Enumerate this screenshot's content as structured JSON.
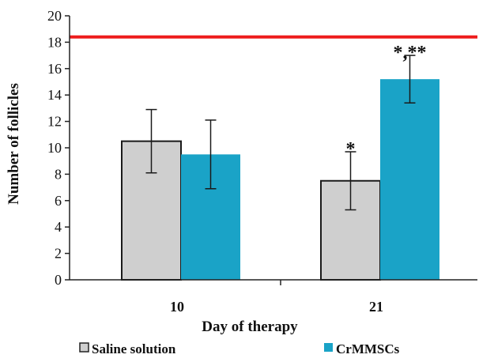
{
  "chart_data": {
    "type": "bar",
    "title": "",
    "xlabel": "Day of therapy",
    "ylabel": "Number of follicles",
    "categories": [
      "10",
      "21"
    ],
    "ylim": [
      0,
      20
    ],
    "yticks": [
      0,
      2,
      4,
      6,
      8,
      10,
      12,
      14,
      16,
      18,
      20
    ],
    "ytick_labels": [
      "0",
      "2",
      "4",
      "6",
      "8",
      "10",
      "12",
      "14",
      "16",
      "18",
      "20"
    ],
    "grid": false,
    "legend": "bottom",
    "series": [
      {
        "name": "Saline solution",
        "color": "#cfcfcf",
        "values": [
          10.5,
          7.5
        ],
        "error": [
          2.4,
          2.2
        ],
        "annotations": [
          "",
          "*"
        ]
      },
      {
        "name": "CrMMSCs",
        "color": "#1aa3c7",
        "values": [
          9.5,
          15.2
        ],
        "error": [
          2.6,
          1.8
        ],
        "annotations": [
          "",
          "*,**"
        ]
      }
    ],
    "reference_line": {
      "value": 18.4,
      "color": "#ee1c1c"
    }
  }
}
